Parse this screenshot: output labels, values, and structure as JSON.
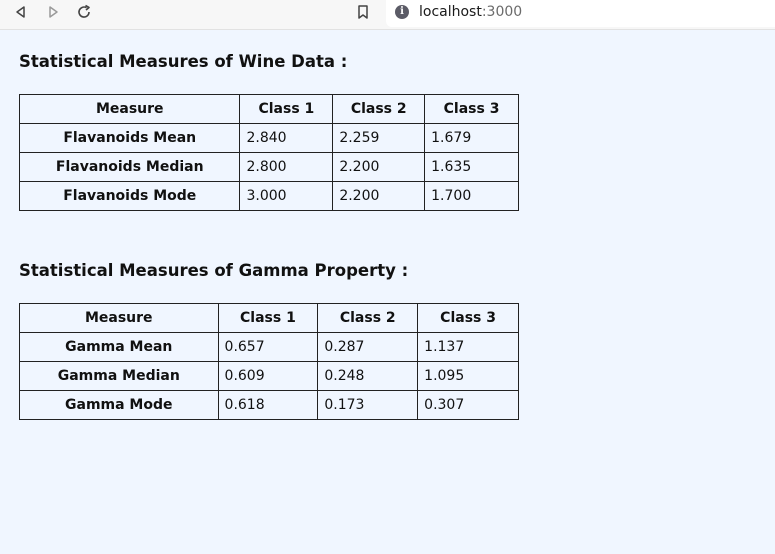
{
  "browser": {
    "url_host": "localhost",
    "url_port": ":3000",
    "icons": {
      "back": "back-arrow-icon",
      "forward": "forward-arrow-icon",
      "reload": "reload-icon",
      "bookmark": "bookmark-icon",
      "site_info": "info-icon"
    }
  },
  "wine": {
    "title": "Statistical Measures of Wine Data :",
    "headers": [
      "Measure",
      "Class 1",
      "Class 2",
      "Class 3"
    ],
    "rows": [
      {
        "measure": "Flavanoids Mean",
        "values": [
          "2.840",
          "2.259",
          "1.679"
        ]
      },
      {
        "measure": "Flavanoids Median",
        "values": [
          "2.800",
          "2.200",
          "1.635"
        ]
      },
      {
        "measure": "Flavanoids Mode",
        "values": [
          "3.000",
          "2.200",
          "1.700"
        ]
      }
    ]
  },
  "gamma": {
    "title": "Statistical Measures of Gamma Property :",
    "headers": [
      "Measure",
      "Class 1",
      "Class 2",
      "Class 3"
    ],
    "rows": [
      {
        "measure": "Gamma Mean",
        "values": [
          "0.657",
          "0.287",
          "1.137"
        ]
      },
      {
        "measure": "Gamma Median",
        "values": [
          "0.609",
          "0.248",
          "1.095"
        ]
      },
      {
        "measure": "Gamma Mode",
        "values": [
          "0.618",
          "0.173",
          "0.307"
        ]
      }
    ]
  }
}
